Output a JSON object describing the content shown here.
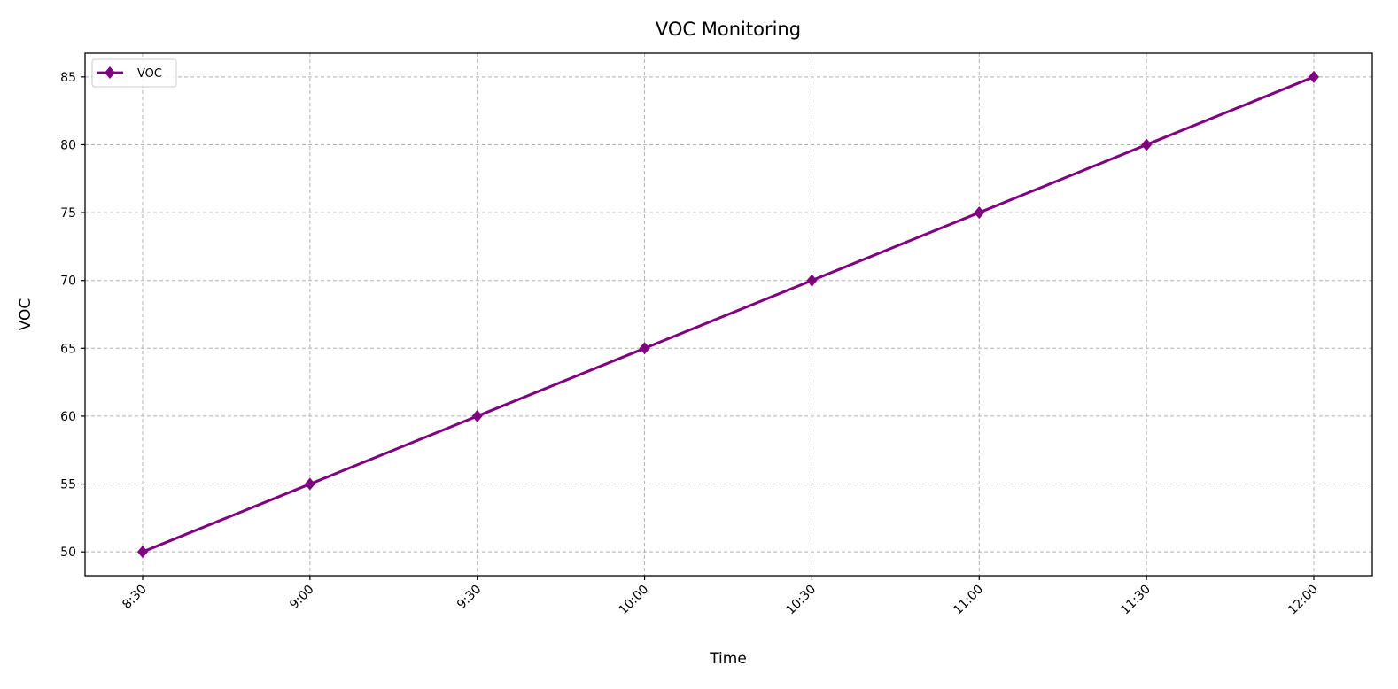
{
  "chart_data": {
    "type": "line",
    "title": "VOC Monitoring",
    "xlabel": "Time",
    "ylabel": "VOC",
    "categories": [
      "8:30",
      "9:00",
      "9:30",
      "10:00",
      "10:30",
      "11:00",
      "11:30",
      "12:00"
    ],
    "series": [
      {
        "name": "VOC",
        "values": [
          50,
          55,
          60,
          65,
          70,
          75,
          80,
          85
        ],
        "color": "#800080",
        "marker": "diamond"
      }
    ],
    "yticks": [
      50,
      55,
      60,
      65,
      70,
      75,
      80,
      85
    ],
    "ylim": [
      48.25,
      86.75
    ],
    "grid": true,
    "legend_position": "top-left"
  }
}
